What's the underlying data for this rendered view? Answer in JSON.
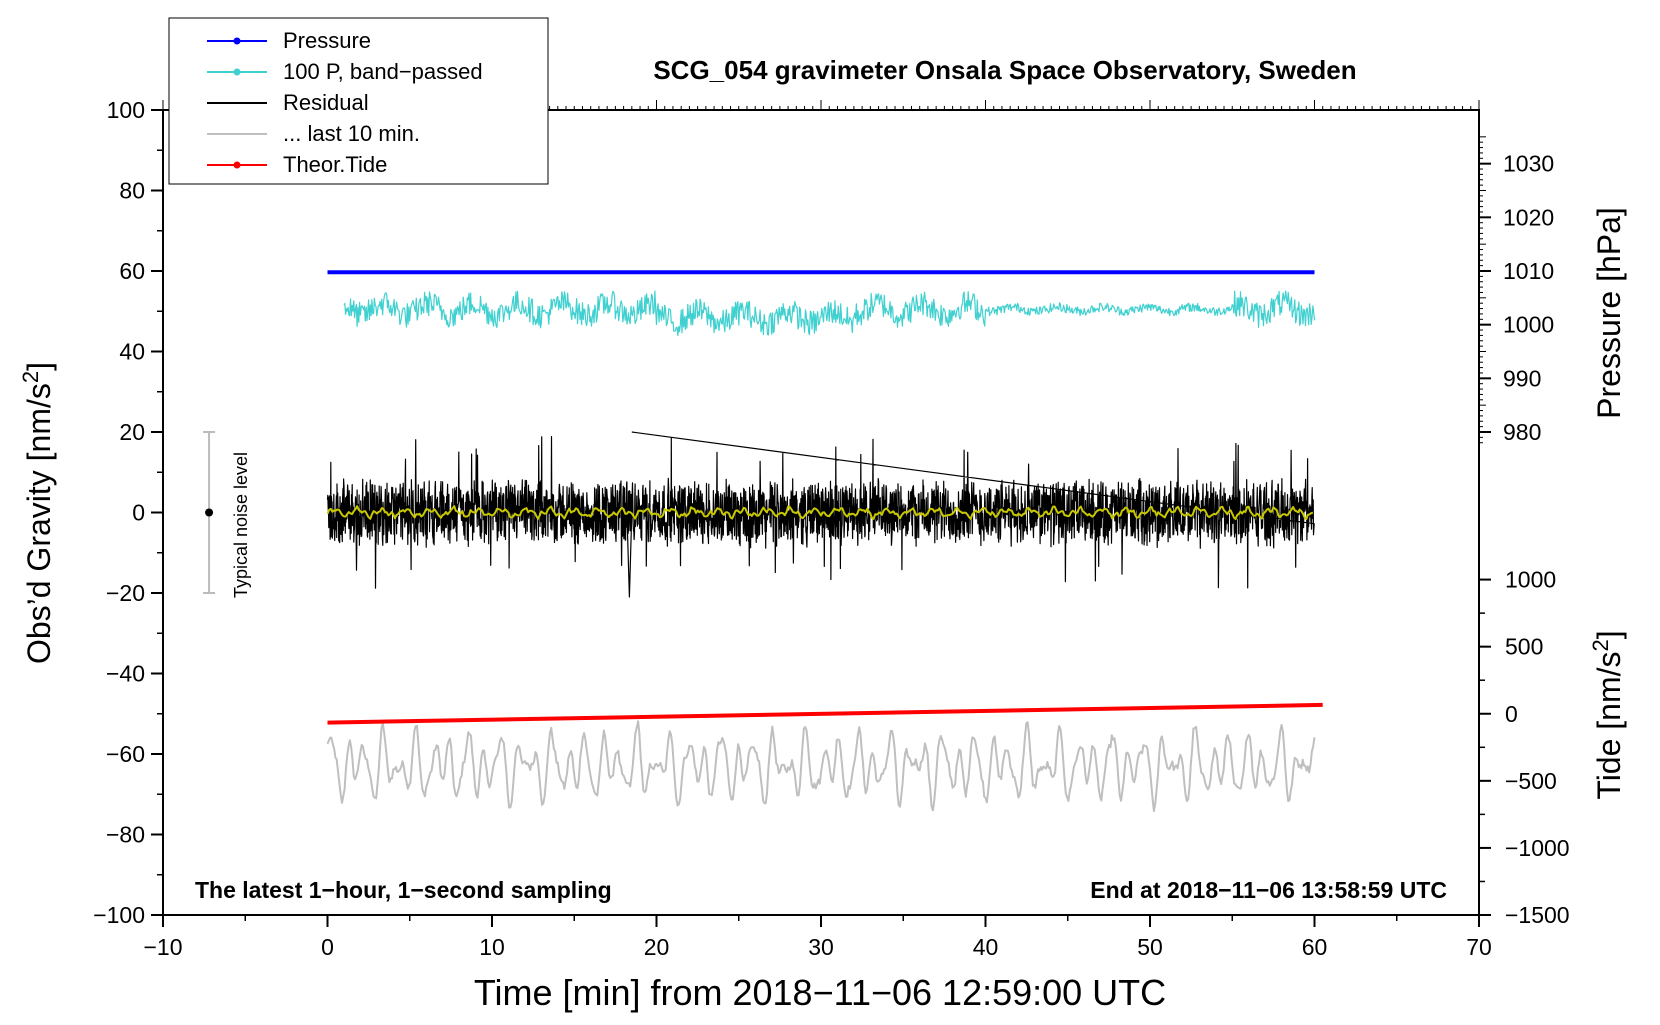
{
  "chart_data": {
    "type": "line",
    "title": "SCG_054 gravimeter Onsala Space Observatory, Sweden",
    "xlabel": "Time [min] from 2018−11−06 12:59:00 UTC",
    "ylabel_left": "Obs’d Gravity [nm/s",
    "ylabel_left_sup": "2",
    "ylabel_left_end": "]",
    "ylabel_right_pressure": "Pressure [hPa]",
    "ylabel_right_tide": "Tide [nm/s",
    "ylabel_right_tide_sup": "2",
    "ylabel_right_tide_end": "]",
    "xlim": [
      -10,
      70
    ],
    "ylim_left": [
      -100,
      100
    ],
    "x_ticks": [
      "−10",
      "0",
      "10",
      "20",
      "30",
      "40",
      "50",
      "60",
      "70"
    ],
    "x_tick_values": [
      -10,
      0,
      10,
      20,
      30,
      40,
      50,
      60,
      70
    ],
    "y_left_ticks": [
      "100",
      "80",
      "60",
      "40",
      "20",
      "0",
      "−20",
      "−40",
      "−60",
      "−80",
      "−100"
    ],
    "y_left_tick_values": [
      100,
      80,
      60,
      40,
      20,
      0,
      -20,
      -40,
      -60,
      -80,
      -100
    ],
    "pressure_axis": {
      "ticks": [
        "1030",
        "1020",
        "1010",
        "1000",
        "990",
        "980"
      ],
      "tick_values": [
        1030,
        1020,
        1010,
        1000,
        990,
        980
      ],
      "ref_left": [
        60,
        1010
      ],
      "ref_left2": [
        20,
        980
      ]
    },
    "tide_axis": {
      "ticks": [
        "1000",
        "500",
        "0",
        "−500",
        "−1000",
        "−1500"
      ],
      "tick_values": [
        1000,
        500,
        0,
        -500,
        -1000,
        -1500
      ],
      "ref_left": [
        -50,
        0
      ],
      "ref_left2": [
        -100,
        -1500
      ]
    },
    "legend": [
      {
        "label": "Pressure",
        "color": "#0000ff",
        "marker": true
      },
      {
        "label": "100 P, band−passed",
        "color": "#40d0d0",
        "marker": true
      },
      {
        "label": "Residual",
        "color": "#000000",
        "marker": false
      },
      {
        "label": "... last 10 min.",
        "color": "#bfbfbf",
        "marker": false
      },
      {
        "label": "Theor.Tide",
        "color": "#ff0000",
        "marker": true
      }
    ],
    "series": [
      {
        "name": "Pressure",
        "color": "#0000ff",
        "x_range": [
          0,
          60
        ],
        "level": 59.7,
        "unit": "gravity-scaled"
      },
      {
        "name": "100 P, band-passed",
        "color": "#40d0d0",
        "x_range": [
          1,
          60
        ],
        "center": 50.5,
        "amplitude": 4
      },
      {
        "name": "Residual",
        "color": "#000000",
        "x_range": [
          0,
          60
        ],
        "center": 0,
        "amplitude": 9,
        "spike_max": 20,
        "spike_min": -21
      },
      {
        "name": "Residual smoothed",
        "color": "#c8c800",
        "x_range": [
          0,
          60
        ],
        "center": 0
      },
      {
        "name": "Theor.Tide",
        "color": "#ff0000",
        "x_range": [
          0,
          60.5
        ],
        "start": -52.2,
        "end": -47.8
      },
      {
        "name": "... last 10 min.",
        "color": "#bfbfbf",
        "x_range": [
          0,
          60
        ],
        "center": -63,
        "amplitude": 9
      }
    ],
    "noise_bar": {
      "label": "Typical noise level",
      "x": -7.2,
      "y": 0,
      "lo": -20,
      "hi": 20
    },
    "annotation_left": "The latest 1−hour, 1−second sampling",
    "annotation_right": "End at 2018−11−06 13:58:59 UTC"
  }
}
